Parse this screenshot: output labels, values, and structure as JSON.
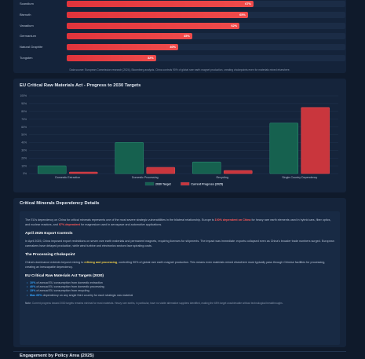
{
  "top_chart": {
    "rows": [
      {
        "label": "Scandium",
        "value": 67,
        "display": "67%"
      },
      {
        "label": "Bismuth",
        "value": 65,
        "display": "65%"
      },
      {
        "label": "Vanadium",
        "value": 62,
        "display": "62%"
      },
      {
        "label": "Germanium",
        "value": 45,
        "display": "45%"
      },
      {
        "label": "Natural Graphite",
        "value": 40,
        "display": "40%"
      },
      {
        "label": "Tungsten",
        "value": 32,
        "display": "32%"
      }
    ],
    "source": "Data source: European Commission research (2024), Bloomberg analysis. China controls 90% of global rare earth magnet production, creating chokepoints even for materials mined elsewhere."
  },
  "chart_data": {
    "type": "bar",
    "title": "EU Critical Raw Materials Act - Progress to 2030 Targets",
    "categories": [
      "Domestic Extraction",
      "Domestic Processing",
      "Recycling",
      "Single-Country Dependency"
    ],
    "series": [
      {
        "name": "2030 Target",
        "values": [
          10,
          40,
          15,
          65
        ],
        "color": "#16614f"
      },
      {
        "name": "Current Progress (2025)",
        "values": [
          2,
          8,
          4,
          85
        ],
        "color": "#c9363d"
      }
    ],
    "ylim": [
      0,
      100
    ],
    "yticks": [
      "0%",
      "10%",
      "20%",
      "30%",
      "40%",
      "50%",
      "60%",
      "70%",
      "80%",
      "90%",
      "100%"
    ],
    "legend": "bottom",
    "grid": true
  },
  "details": {
    "title": "Critical Minerals Dependency Details",
    "intro_1": "The EU's dependency on China for critical minerals represents one of the most severe strategic vulnerabilities in the bilateral relationship. Europe is ",
    "intro_hl1": "100% dependent on China",
    "intro_2": " for heavy rare earth elements used in hybrid cars, fiber optics, and nuclear reactors, and ",
    "intro_hl2": "97% dependent",
    "intro_3": " for magnesium used in aerospace and automotive applications.",
    "h1": "April 2025 Export Controls",
    "p1": "In April 2025, China imposed export restrictions on seven rare earth materials and permanent magnets, requiring licenses for shipments. The impact was immediate: exports collapsed even as China's broader trade numbers surged. European carmakers have delayed production, while wind turbine and electronics sectors face spiraling costs.",
    "h2": "The Processing Chokepoint",
    "p2_1": "China's dominance extends beyond mining to ",
    "p2_hl": "refining and processing",
    "p2_2": ", controlling 90% of global rare earth magnet production. This means even materials mined elsewhere must typically pass through Chinese facilities for processing, creating an inescapable dependency.",
    "h3": "EU Critical Raw Materials Act Targets (2030)",
    "targets": [
      {
        "hl": "10%",
        "text": " of annual EU consumption from domestic extraction"
      },
      {
        "hl": "40%",
        "text": " of annual EU consumption from domestic processing"
      },
      {
        "hl": "15%",
        "text": " of annual EU consumption from recycling"
      },
      {
        "hl": "Max 65%",
        "text": " dependency on any single third country for each strategic raw material"
      }
    ],
    "note_label": "Note:",
    "note_text": " Current progress toward 2030 targets remains minimal for most materials. Heavy rare earths, in particular, have no viable alternative suppliers identified, making the 65% target unachievable without technological breakthroughs."
  },
  "bottom_title": "Engagement by Policy Area (2025)"
}
